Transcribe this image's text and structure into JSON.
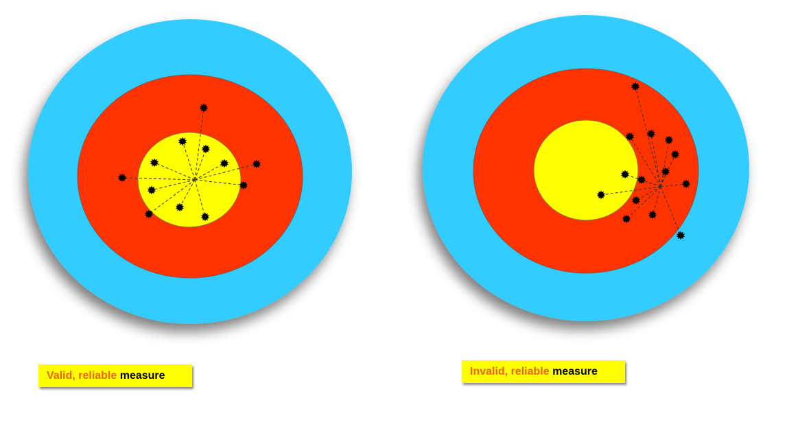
{
  "colors": {
    "outer_ring": "#33ccff",
    "middle_ring": "#ff3300",
    "bullseye": "#ffff00",
    "hit_mark": "#000000",
    "caption_bg": "#ffff00",
    "caption_lead": "#e8661a",
    "caption_tail": "#000000"
  },
  "targets": [
    {
      "caption": {
        "lead": "Valid, reliable",
        "tail": "measure"
      },
      "hit_count": 12
    },
    {
      "caption": {
        "lead": "Invalid, reliable",
        "tail": "measure"
      },
      "hit_count": 14
    }
  ]
}
